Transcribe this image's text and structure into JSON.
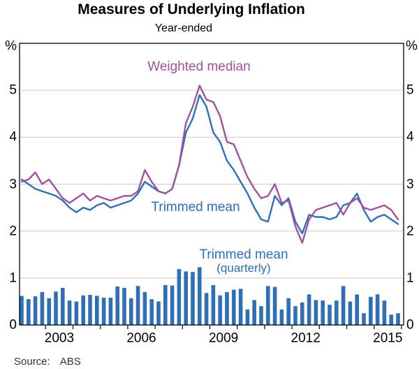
{
  "title": "Measures of Underlying Inflation",
  "subtitle": "Year-ended",
  "source": {
    "label": "Source:",
    "value": "ABS"
  },
  "axes": {
    "unit_left": "%",
    "unit_right": "%",
    "y_tick_labels": [
      "5",
      "4",
      "3",
      "2",
      "1",
      "0"
    ],
    "y_tick_values": [
      5,
      4,
      3,
      2,
      1,
      0
    ],
    "x_tick_labels": [
      "2003",
      "2006",
      "2009",
      "2012",
      "2015"
    ]
  },
  "annotations": {
    "weighted_median": "Weighted median",
    "trimmed_mean": "Trimmed mean",
    "trimmed_mean_quarterly_line1": "Trimmed mean",
    "trimmed_mean_quarterly_line2": "(quarterly)"
  },
  "colors": {
    "blue": "#2e6fb7",
    "purple": "#a0519f",
    "grid": "#cbcbcb",
    "axis": "#000000"
  },
  "chart_data": {
    "type": "line+bar",
    "title": "Measures of Underlying Inflation",
    "subtitle": "Year-ended",
    "ylabel": "%",
    "ylim": [
      0,
      6
    ],
    "gridlines": [
      1,
      2,
      3,
      4,
      5
    ],
    "legend_position": "inline-annotations",
    "x_start": "2002Q1",
    "x_end": "2015Q4",
    "frequency": "quarterly",
    "x_year_labels": [
      "2003",
      "2006",
      "2009",
      "2012",
      "2015"
    ],
    "series": [
      {
        "name": "Weighted median",
        "type": "line",
        "color": "#a0519f",
        "values": [
          3.05,
          3.1,
          3.25,
          3.0,
          3.1,
          2.9,
          2.7,
          2.6,
          2.7,
          2.8,
          2.65,
          2.75,
          2.7,
          2.65,
          2.7,
          2.75,
          2.75,
          2.85,
          3.3,
          3.05,
          2.85,
          2.8,
          2.9,
          3.4,
          4.3,
          4.65,
          5.1,
          4.8,
          4.75,
          4.45,
          3.9,
          3.85,
          3.5,
          3.15,
          2.9,
          2.7,
          2.75,
          3.0,
          2.6,
          2.65,
          2.1,
          1.75,
          2.25,
          2.45,
          2.5,
          2.55,
          2.6,
          2.35,
          2.6,
          2.7,
          2.5,
          2.45,
          2.5,
          2.55,
          2.45,
          2.25
        ]
      },
      {
        "name": "Trimmed mean",
        "type": "line",
        "color": "#2e6fb7",
        "values": [
          3.1,
          3.0,
          2.9,
          2.85,
          2.8,
          2.75,
          2.65,
          2.5,
          2.4,
          2.5,
          2.45,
          2.55,
          2.6,
          2.5,
          2.55,
          2.6,
          2.65,
          2.8,
          3.05,
          2.95,
          2.85,
          2.8,
          2.9,
          3.4,
          4.1,
          4.4,
          4.9,
          4.65,
          4.1,
          3.9,
          3.5,
          3.3,
          3.05,
          2.8,
          2.5,
          2.25,
          2.2,
          2.75,
          2.55,
          2.7,
          2.2,
          1.95,
          2.35,
          2.3,
          2.3,
          2.25,
          2.3,
          2.55,
          2.6,
          2.8,
          2.45,
          2.2,
          2.3,
          2.35,
          2.25,
          2.15
        ]
      },
      {
        "name": "Trimmed mean (quarterly)",
        "type": "bar",
        "color": "#2e6fb7",
        "values": [
          0.62,
          0.55,
          0.61,
          0.7,
          0.57,
          0.71,
          0.79,
          0.52,
          0.5,
          0.63,
          0.64,
          0.62,
          0.58,
          0.58,
          0.82,
          0.79,
          0.57,
          0.83,
          0.7,
          0.55,
          0.5,
          0.85,
          0.84,
          1.19,
          1.14,
          1.13,
          1.23,
          0.68,
          0.85,
          0.63,
          0.7,
          0.75,
          0.77,
          0.33,
          0.53,
          0.4,
          0.83,
          0.81,
          0.33,
          0.57,
          0.4,
          0.48,
          0.65,
          0.53,
          0.52,
          0.43,
          0.52,
          0.83,
          0.5,
          0.65,
          0.25,
          0.6,
          0.65,
          0.52,
          0.22,
          0.25
        ]
      }
    ]
  }
}
